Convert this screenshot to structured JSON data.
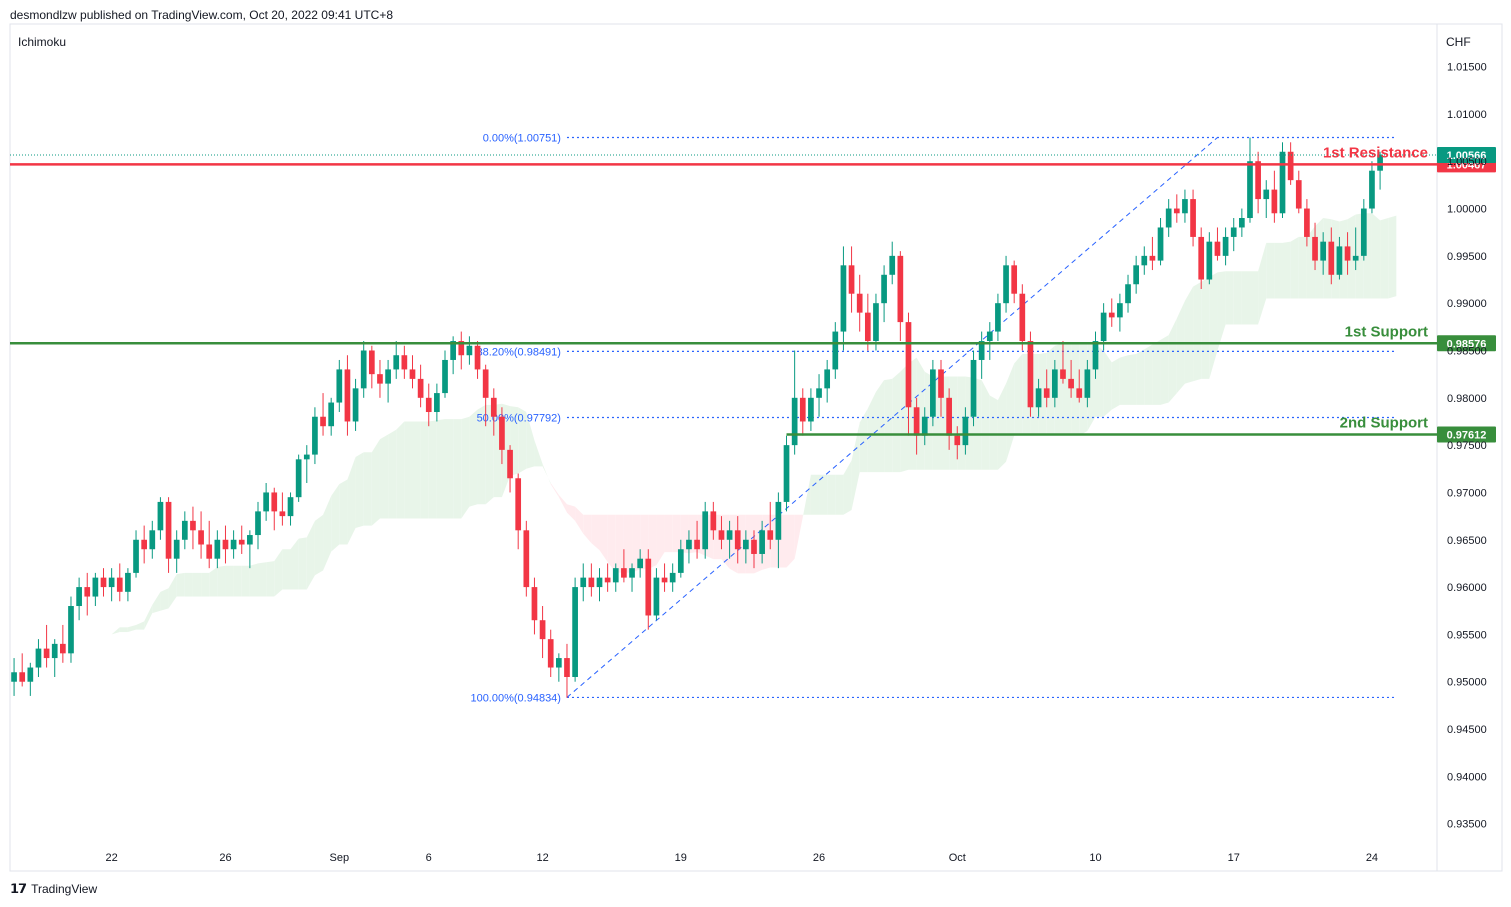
{
  "header": {
    "publisher": "desmondlzw published on TradingView.com, Oct 20, 2022 09:41 UTC+8"
  },
  "footer": {
    "brand": "TradingView",
    "logo_icon": "tradingview-logo-icon"
  },
  "chart_data": {
    "type": "candlestick",
    "indicator": "Ichimoku",
    "currency": "CHF",
    "ylim": [
      0.93,
      1.0195
    ],
    "y_ticks": [
      "1.01500",
      "1.01000",
      "1.00500",
      "1.00000",
      "0.99500",
      "0.99000",
      "0.98500",
      "0.98000",
      "0.97500",
      "0.97000",
      "0.96500",
      "0.96000",
      "0.95500",
      "0.95000",
      "0.94500",
      "0.94000",
      "0.93500"
    ],
    "x_ticks": [
      {
        "label": "22",
        "bar": 12
      },
      {
        "label": "26",
        "bar": 26
      },
      {
        "label": "Sep",
        "bar": 40
      },
      {
        "label": "6",
        "bar": 51
      },
      {
        "label": "12",
        "bar": 65
      },
      {
        "label": "19",
        "bar": 82
      },
      {
        "label": "26",
        "bar": 99
      },
      {
        "label": "Oct",
        "bar": 116
      },
      {
        "label": "10",
        "bar": 133
      },
      {
        "label": "17",
        "bar": 150
      },
      {
        "label": "24",
        "bar": 167
      }
    ],
    "x_bar_range": [
      -0.5,
      175
    ],
    "horizontal_levels": [
      {
        "name": "1st Resistance",
        "price": 1.00467,
        "label": "1.00467",
        "color": "#f23645"
      },
      {
        "name": "1st Support",
        "price": 0.98576,
        "label": "0.98576",
        "color": "#388e3c"
      },
      {
        "name": "2nd Support",
        "price": 0.97612,
        "label": "0.97612",
        "color": "#388e3c",
        "start_bar": 95
      }
    ],
    "last_price": {
      "price": 1.00566,
      "label": "1.00566",
      "color": "#089981"
    },
    "fibonacci": {
      "from_bar": 68,
      "to_bar": 170,
      "levels": [
        {
          "label": "0.00%(1.00751)",
          "price": 1.00751
        },
        {
          "label": "38.20%(0.98491)",
          "price": 0.98491
        },
        {
          "label": "50.00%(0.97792)",
          "price": 0.97792
        },
        {
          "label": "100.00%(0.94834)",
          "price": 0.94834
        }
      ],
      "trend": [
        [
          68,
          0.94834
        ],
        [
          148,
          1.00751
        ]
      ],
      "color": "#2962ff"
    },
    "colors": {
      "up": "#089981",
      "down": "#f23645",
      "cloud_bull": "#e8f5e9",
      "cloud_bear": "#ffebee"
    },
    "ohlc": [
      [
        0.95,
        0.9525,
        0.9485,
        0.951
      ],
      [
        0.951,
        0.953,
        0.9495,
        0.95
      ],
      [
        0.95,
        0.952,
        0.9485,
        0.9515
      ],
      [
        0.9515,
        0.9545,
        0.9505,
        0.9535
      ],
      [
        0.9535,
        0.956,
        0.9515,
        0.9525
      ],
      [
        0.9525,
        0.9545,
        0.9505,
        0.954
      ],
      [
        0.954,
        0.956,
        0.952,
        0.953
      ],
      [
        0.953,
        0.959,
        0.952,
        0.958
      ],
      [
        0.958,
        0.961,
        0.9565,
        0.96
      ],
      [
        0.96,
        0.9615,
        0.957,
        0.959
      ],
      [
        0.959,
        0.9615,
        0.958,
        0.961
      ],
      [
        0.961,
        0.962,
        0.959,
        0.96
      ],
      [
        0.96,
        0.962,
        0.9585,
        0.961
      ],
      [
        0.961,
        0.9625,
        0.9585,
        0.9595
      ],
      [
        0.9595,
        0.962,
        0.9585,
        0.9615
      ],
      [
        0.9615,
        0.966,
        0.961,
        0.965
      ],
      [
        0.965,
        0.9665,
        0.9625,
        0.964
      ],
      [
        0.964,
        0.967,
        0.963,
        0.966
      ],
      [
        0.966,
        0.9695,
        0.965,
        0.969
      ],
      [
        0.969,
        0.9695,
        0.9615,
        0.963
      ],
      [
        0.963,
        0.966,
        0.9615,
        0.965
      ],
      [
        0.965,
        0.968,
        0.964,
        0.967
      ],
      [
        0.967,
        0.9685,
        0.964,
        0.966
      ],
      [
        0.966,
        0.968,
        0.963,
        0.9645
      ],
      [
        0.9645,
        0.967,
        0.962,
        0.963
      ],
      [
        0.963,
        0.966,
        0.962,
        0.965
      ],
      [
        0.965,
        0.9665,
        0.9625,
        0.964
      ],
      [
        0.964,
        0.966,
        0.963,
        0.965
      ],
      [
        0.965,
        0.9665,
        0.9635,
        0.9645
      ],
      [
        0.9645,
        0.966,
        0.962,
        0.9655
      ],
      [
        0.9655,
        0.969,
        0.964,
        0.968
      ],
      [
        0.968,
        0.971,
        0.967,
        0.97
      ],
      [
        0.97,
        0.9705,
        0.966,
        0.968
      ],
      [
        0.968,
        0.97,
        0.9665,
        0.9675
      ],
      [
        0.9675,
        0.97,
        0.9665,
        0.9695
      ],
      [
        0.9695,
        0.974,
        0.969,
        0.9735
      ],
      [
        0.9735,
        0.975,
        0.971,
        0.974
      ],
      [
        0.974,
        0.979,
        0.973,
        0.978
      ],
      [
        0.978,
        0.9805,
        0.976,
        0.977
      ],
      [
        0.977,
        0.98,
        0.976,
        0.9795
      ],
      [
        0.9795,
        0.984,
        0.9785,
        0.983
      ],
      [
        0.983,
        0.9845,
        0.976,
        0.9775
      ],
      [
        0.9775,
        0.982,
        0.9765,
        0.981
      ],
      [
        0.981,
        0.986,
        0.98,
        0.985
      ],
      [
        0.985,
        0.9855,
        0.981,
        0.9825
      ],
      [
        0.9825,
        0.984,
        0.98,
        0.9815
      ],
      [
        0.9815,
        0.984,
        0.9795,
        0.983
      ],
      [
        0.983,
        0.986,
        0.982,
        0.9845
      ],
      [
        0.9845,
        0.9855,
        0.982,
        0.983
      ],
      [
        0.983,
        0.9845,
        0.981,
        0.982
      ],
      [
        0.982,
        0.9835,
        0.979,
        0.98
      ],
      [
        0.98,
        0.9815,
        0.977,
        0.9785
      ],
      [
        0.9785,
        0.9815,
        0.9775,
        0.9805
      ],
      [
        0.9805,
        0.985,
        0.98,
        0.984
      ],
      [
        0.984,
        0.9865,
        0.9825,
        0.986
      ],
      [
        0.986,
        0.987,
        0.983,
        0.9845
      ],
      [
        0.9845,
        0.9865,
        0.9835,
        0.9855
      ],
      [
        0.9855,
        0.986,
        0.982,
        0.983
      ],
      [
        0.983,
        0.9835,
        0.977,
        0.98
      ],
      [
        0.98,
        0.981,
        0.976,
        0.978
      ],
      [
        0.978,
        0.979,
        0.973,
        0.9745
      ],
      [
        0.9745,
        0.975,
        0.97,
        0.9715
      ],
      [
        0.9715,
        0.972,
        0.964,
        0.966
      ],
      [
        0.966,
        0.967,
        0.959,
        0.96
      ],
      [
        0.96,
        0.961,
        0.955,
        0.9565
      ],
      [
        0.9565,
        0.958,
        0.9525,
        0.9545
      ],
      [
        0.9545,
        0.9555,
        0.9505,
        0.9515
      ],
      [
        0.9515,
        0.953,
        0.95,
        0.9525
      ],
      [
        0.9525,
        0.954,
        0.9483,
        0.9505
      ],
      [
        0.9505,
        0.961,
        0.95,
        0.96
      ],
      [
        0.96,
        0.9625,
        0.9585,
        0.961
      ],
      [
        0.961,
        0.9625,
        0.959,
        0.96
      ],
      [
        0.96,
        0.962,
        0.9585,
        0.961
      ],
      [
        0.961,
        0.9625,
        0.9595,
        0.9605
      ],
      [
        0.9605,
        0.9625,
        0.9595,
        0.962
      ],
      [
        0.962,
        0.964,
        0.9605,
        0.961
      ],
      [
        0.961,
        0.9625,
        0.9595,
        0.962
      ],
      [
        0.962,
        0.964,
        0.961,
        0.963
      ],
      [
        0.963,
        0.964,
        0.9555,
        0.957
      ],
      [
        0.957,
        0.962,
        0.9565,
        0.961
      ],
      [
        0.961,
        0.9625,
        0.9595,
        0.9605
      ],
      [
        0.9605,
        0.9625,
        0.9595,
        0.9615
      ],
      [
        0.9615,
        0.965,
        0.961,
        0.964
      ],
      [
        0.964,
        0.966,
        0.9625,
        0.965
      ],
      [
        0.965,
        0.967,
        0.963,
        0.964
      ],
      [
        0.964,
        0.969,
        0.963,
        0.968
      ],
      [
        0.968,
        0.969,
        0.965,
        0.966
      ],
      [
        0.966,
        0.9675,
        0.964,
        0.965
      ],
      [
        0.965,
        0.967,
        0.963,
        0.966
      ],
      [
        0.966,
        0.9675,
        0.9625,
        0.964
      ],
      [
        0.964,
        0.966,
        0.9625,
        0.965
      ],
      [
        0.965,
        0.966,
        0.962,
        0.9635
      ],
      [
        0.9635,
        0.967,
        0.9625,
        0.966
      ],
      [
        0.966,
        0.969,
        0.964,
        0.965
      ],
      [
        0.965,
        0.97,
        0.962,
        0.969
      ],
      [
        0.969,
        0.976,
        0.968,
        0.975
      ],
      [
        0.975,
        0.985,
        0.974,
        0.98
      ],
      [
        0.98,
        0.981,
        0.976,
        0.9775
      ],
      [
        0.9775,
        0.981,
        0.9765,
        0.98
      ],
      [
        0.98,
        0.9825,
        0.978,
        0.981
      ],
      [
        0.981,
        0.984,
        0.9795,
        0.983
      ],
      [
        0.983,
        0.988,
        0.982,
        0.987
      ],
      [
        0.987,
        0.996,
        0.985,
        0.994
      ],
      [
        0.994,
        0.996,
        0.989,
        0.991
      ],
      [
        0.991,
        0.993,
        0.987,
        0.989
      ],
      [
        0.989,
        0.991,
        0.985,
        0.986
      ],
      [
        0.986,
        0.991,
        0.985,
        0.99
      ],
      [
        0.99,
        0.994,
        0.988,
        0.993
      ],
      [
        0.993,
        0.9965,
        0.992,
        0.995
      ],
      [
        0.995,
        0.9955,
        0.986,
        0.988
      ],
      [
        0.988,
        0.989,
        0.976,
        0.979
      ],
      [
        0.979,
        0.98,
        0.974,
        0.976
      ],
      [
        0.976,
        0.979,
        0.975,
        0.978
      ],
      [
        0.978,
        0.984,
        0.977,
        0.983
      ],
      [
        0.983,
        0.984,
        0.978,
        0.98
      ],
      [
        0.98,
        0.981,
        0.9745,
        0.976
      ],
      [
        0.976,
        0.977,
        0.9735,
        0.975
      ],
      [
        0.975,
        0.979,
        0.974,
        0.978
      ],
      [
        0.978,
        0.985,
        0.977,
        0.984
      ],
      [
        0.984,
        0.987,
        0.982,
        0.986
      ],
      [
        0.986,
        0.988,
        0.984,
        0.987
      ],
      [
        0.987,
        0.991,
        0.986,
        0.99
      ],
      [
        0.99,
        0.995,
        0.989,
        0.994
      ],
      [
        0.994,
        0.9945,
        0.99,
        0.991
      ],
      [
        0.991,
        0.992,
        0.985,
        0.986
      ],
      [
        0.986,
        0.987,
        0.978,
        0.979
      ],
      [
        0.979,
        0.982,
        0.978,
        0.981
      ],
      [
        0.981,
        0.983,
        0.979,
        0.98
      ],
      [
        0.98,
        0.984,
        0.979,
        0.983
      ],
      [
        0.983,
        0.986,
        0.9815,
        0.982
      ],
      [
        0.982,
        0.984,
        0.98,
        0.981
      ],
      [
        0.981,
        0.983,
        0.9795,
        0.98
      ],
      [
        0.98,
        0.984,
        0.979,
        0.983
      ],
      [
        0.983,
        0.987,
        0.982,
        0.986
      ],
      [
        0.986,
        0.99,
        0.985,
        0.989
      ],
      [
        0.989,
        0.9905,
        0.9875,
        0.9885
      ],
      [
        0.9885,
        0.991,
        0.987,
        0.99
      ],
      [
        0.99,
        0.993,
        0.989,
        0.992
      ],
      [
        0.992,
        0.995,
        0.991,
        0.994
      ],
      [
        0.994,
        0.996,
        0.993,
        0.995
      ],
      [
        0.995,
        0.997,
        0.9935,
        0.9945
      ],
      [
        0.9945,
        0.999,
        0.994,
        0.998
      ],
      [
        0.998,
        1.001,
        0.997,
        1.0
      ],
      [
        1.0,
        1.0015,
        0.9985,
        0.9995
      ],
      [
        0.9995,
        1.002,
        0.9985,
        1.001
      ],
      [
        1.001,
        1.002,
        0.996,
        0.997
      ],
      [
        0.997,
        0.998,
        0.9915,
        0.9925
      ],
      [
        0.9925,
        0.9975,
        0.992,
        0.9965
      ],
      [
        0.9965,
        0.998,
        0.9945,
        0.995
      ],
      [
        0.995,
        0.998,
        0.994,
        0.997
      ],
      [
        0.997,
        0.999,
        0.9955,
        0.998
      ],
      [
        0.998,
        1.0,
        0.997,
        0.999
      ],
      [
        0.999,
        1.0075,
        0.9985,
        1.005
      ],
      [
        1.005,
        1.006,
        0.9995,
        1.001
      ],
      [
        1.001,
        1.003,
        0.999,
        1.002
      ],
      [
        1.002,
        1.004,
        0.9985,
        0.9995
      ],
      [
        0.9995,
        1.007,
        0.999,
        1.006
      ],
      [
        1.006,
        1.007,
        1.0025,
        1.003
      ],
      [
        1.003,
        1.004,
        0.9995,
        1.0
      ],
      [
        1.0,
        1.001,
        0.996,
        0.997
      ],
      [
        0.997,
        0.9985,
        0.9935,
        0.9945
      ],
      [
        0.9945,
        0.9975,
        0.993,
        0.9965
      ],
      [
        0.9965,
        0.998,
        0.992,
        0.993
      ],
      [
        0.993,
        0.997,
        0.9925,
        0.996
      ],
      [
        0.996,
        0.9975,
        0.993,
        0.9945
      ],
      [
        0.9945,
        0.998,
        0.9935,
        0.995
      ],
      [
        0.995,
        1.001,
        0.9945,
        1.0
      ],
      [
        1.0,
        1.005,
        0.9995,
        1.004
      ],
      [
        1.004,
        1.006,
        1.002,
        1.0057
      ]
    ]
  }
}
